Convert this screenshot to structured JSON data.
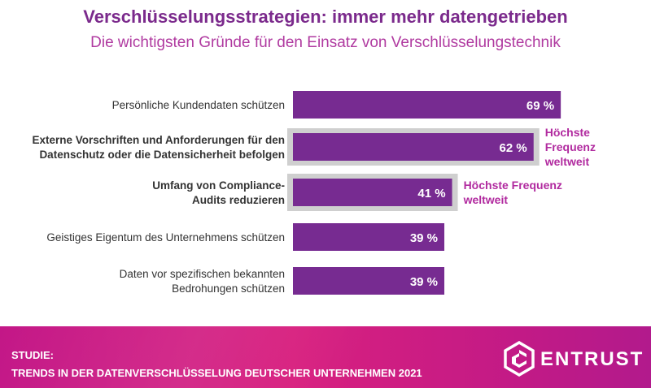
{
  "header": {
    "title": "Verschlüsselungsstrategien: immer mehr datengetrieben",
    "subtitle": "Die wichtigsten Gründe für den Einsatz von Verschlüsselungstechnik"
  },
  "chart_data": {
    "type": "bar",
    "orientation": "horizontal",
    "title": "Verschlüsselungsstrategien: immer mehr datengetrieben",
    "subtitle": "Die wichtigsten Gründe für den Einsatz von Verschlüsselungstechnik",
    "unit": "%",
    "xlim": [
      0,
      100
    ],
    "categories": [
      [
        "Persönliche Kundendaten schützen"
      ],
      [
        "Externe Vorschriften und Anforderungen für den",
        "Datenschutz oder die Datensicherheit befolgen"
      ],
      [
        "Umfang von Compliance-",
        "Audits reduzieren"
      ],
      [
        "Geistiges Eigentum des Unternehmens schützen"
      ],
      [
        "Daten vor spezifischen bekannten",
        "Bedrohungen schützen"
      ]
    ],
    "values": [
      69,
      62,
      41,
      39,
      39
    ],
    "value_labels": [
      "69 %",
      "62 %",
      "41 %",
      "39 %",
      "39 %"
    ],
    "highlighted": [
      false,
      true,
      true,
      false,
      false
    ],
    "annotations": [
      {
        "bar_index": 1,
        "lines": [
          "Höchste",
          "Frequenz",
          "weltweit"
        ]
      },
      {
        "bar_index": 2,
        "lines": [
          "Höchste Frequenz",
          "weltweit"
        ]
      }
    ],
    "colors": {
      "bar": "#772b91",
      "highlight_frame": "#cfcfcf",
      "annotation": "#b12a9f",
      "label": "#333333",
      "value_text": "#ffffff"
    }
  },
  "footer": {
    "study_label": "STUDIE:",
    "study_title": "TRENDS IN DER DATENVERSCHLÜSSELUNG DEUTSCHER UNTERNEHMEN 2021",
    "brand": "ENTRUST",
    "logo_icon": "entrust-hexagon-logo-icon"
  }
}
